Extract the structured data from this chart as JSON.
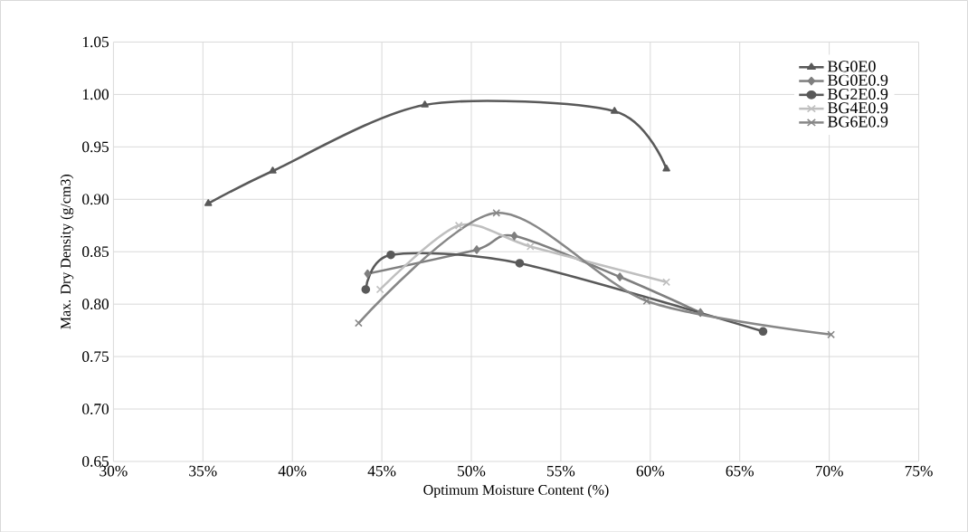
{
  "chart_data": {
    "type": "line",
    "xlabel": "Optimum Moisture Content (%)",
    "ylabel": "Max. Dry Density (g/cm3)",
    "xlim": [
      30,
      75
    ],
    "ylim": [
      0.65,
      1.05
    ],
    "xticks": [
      {
        "value": 30,
        "label": "30%"
      },
      {
        "value": 35,
        "label": "35%"
      },
      {
        "value": 40,
        "label": "40%"
      },
      {
        "value": 45,
        "label": "45%"
      },
      {
        "value": 50,
        "label": "50%"
      },
      {
        "value": 55,
        "label": "55%"
      },
      {
        "value": 60,
        "label": "60%"
      },
      {
        "value": 65,
        "label": "65%"
      },
      {
        "value": 70,
        "label": "70%"
      },
      {
        "value": 75,
        "label": "75%"
      }
    ],
    "yticks": [
      {
        "value": 0.65,
        "label": "0.65"
      },
      {
        "value": 0.7,
        "label": "0.70"
      },
      {
        "value": 0.75,
        "label": "0.75"
      },
      {
        "value": 0.8,
        "label": "0.80"
      },
      {
        "value": 0.85,
        "label": "0.85"
      },
      {
        "value": 0.9,
        "label": "0.90"
      },
      {
        "value": 0.95,
        "label": "0.95"
      },
      {
        "value": 1.0,
        "label": "1.00"
      },
      {
        "value": 1.05,
        "label": "1.05"
      }
    ],
    "grid": true,
    "legend": "top right",
    "series": [
      {
        "name": "BG0E0",
        "color": "#595959",
        "marker": "triangle",
        "x": [
          35.3,
          38.9,
          47.4,
          58.0,
          60.9
        ],
        "values": [
          0.896,
          0.927,
          0.99,
          0.984,
          0.929
        ]
      },
      {
        "name": "BG0E0.9",
        "color": "#7f7f7f",
        "marker": "diamond",
        "x": [
          44.2,
          50.3,
          52.4,
          58.3,
          62.8
        ],
        "values": [
          0.829,
          0.852,
          0.865,
          0.826,
          0.792
        ]
      },
      {
        "name": "BG2E0.9",
        "color": "#595959",
        "marker": "circle",
        "x": [
          44.1,
          45.5,
          52.7,
          66.3
        ],
        "values": [
          0.814,
          0.847,
          0.839,
          0.774
        ]
      },
      {
        "name": "BG4E0.9",
        "color": "#bfbfbf",
        "marker": "cross",
        "x": [
          44.9,
          49.3,
          53.3,
          60.9
        ],
        "values": [
          0.814,
          0.875,
          0.855,
          0.821
        ]
      },
      {
        "name": "BG6E0.9",
        "color": "#878787",
        "marker": "cross",
        "x": [
          43.7,
          51.4,
          59.8,
          70.1
        ],
        "values": [
          0.782,
          0.887,
          0.803,
          0.771
        ]
      }
    ]
  }
}
